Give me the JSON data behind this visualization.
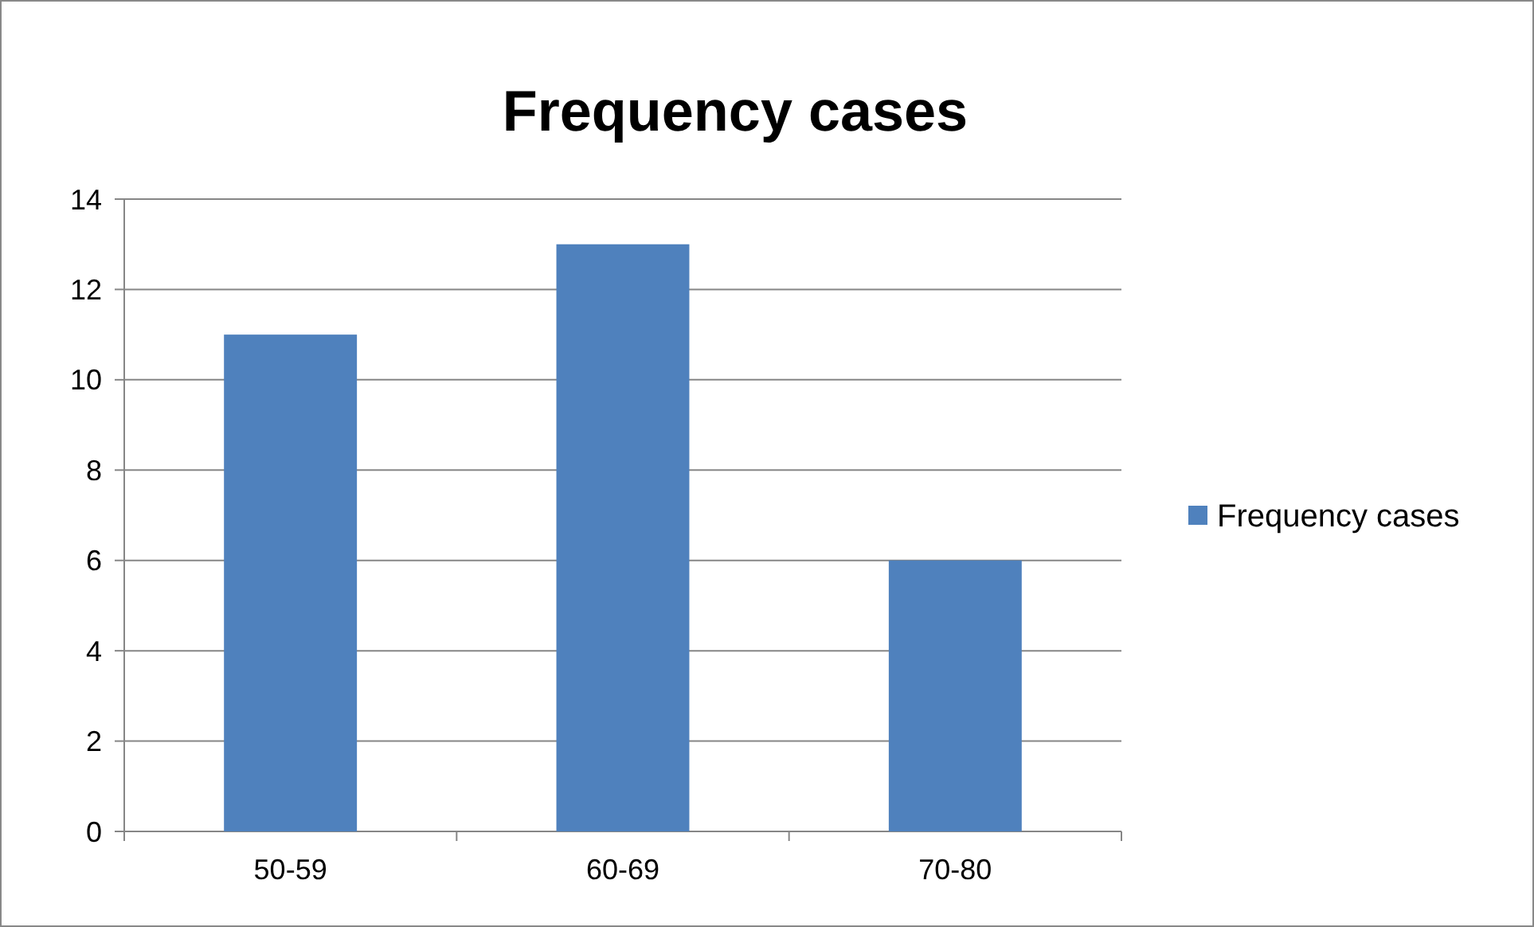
{
  "chart_data": {
    "type": "bar",
    "title": "Frequency cases",
    "categories": [
      "50-59",
      "60-69",
      "70-80"
    ],
    "series": [
      {
        "name": "Frequency cases",
        "color": "#4f81bd",
        "values": [
          11,
          13,
          6
        ]
      }
    ],
    "ylim": [
      0,
      14
    ],
    "yticks": [
      0,
      2,
      4,
      6,
      8,
      10,
      12,
      14
    ],
    "grid": "y",
    "legend": "right"
  }
}
